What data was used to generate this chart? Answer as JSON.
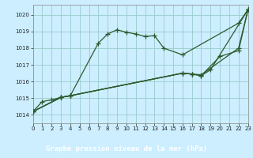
{
  "xlabel": "Graphe pression niveau de la mer (hPa)",
  "bg_color": "#cceeff",
  "label_bg": "#2d6b2d",
  "label_fg": "#ffffff",
  "grid_color": "#99cccc",
  "line_color": "#2d5a2d",
  "xlim": [
    0,
    23
  ],
  "ylim": [
    1013.5,
    1020.6
  ],
  "yticks": [
    1014,
    1015,
    1016,
    1017,
    1018,
    1019,
    1020
  ],
  "xticks": [
    0,
    1,
    2,
    3,
    4,
    5,
    6,
    7,
    8,
    9,
    10,
    11,
    12,
    13,
    14,
    15,
    16,
    17,
    18,
    19,
    20,
    21,
    22,
    23
  ],
  "line1_x": [
    0,
    1,
    2,
    3,
    4,
    7,
    8,
    9,
    10,
    11,
    12,
    13,
    14,
    16,
    22,
    23
  ],
  "line1_y": [
    1014.2,
    1014.8,
    1014.9,
    1015.05,
    1015.15,
    1018.3,
    1018.85,
    1019.1,
    1018.95,
    1018.85,
    1018.7,
    1018.75,
    1018.0,
    1017.6,
    1019.5,
    1020.3
  ],
  "line2_x": [
    0,
    3,
    4,
    16,
    17,
    18,
    22,
    23
  ],
  "line2_y": [
    1014.2,
    1015.05,
    1015.15,
    1016.5,
    1016.45,
    1016.4,
    1018.0,
    1020.3
  ],
  "line3_x": [
    0,
    3,
    4,
    16,
    17,
    18,
    20,
    22,
    23
  ],
  "line3_y": [
    1014.2,
    1015.05,
    1015.15,
    1016.5,
    1016.45,
    1016.35,
    1017.5,
    1017.85,
    1020.3
  ],
  "line4_x": [
    0,
    3,
    4,
    16,
    17,
    18,
    19,
    23
  ],
  "line4_y": [
    1014.2,
    1015.05,
    1015.15,
    1016.5,
    1016.45,
    1016.35,
    1016.7,
    1020.3
  ]
}
